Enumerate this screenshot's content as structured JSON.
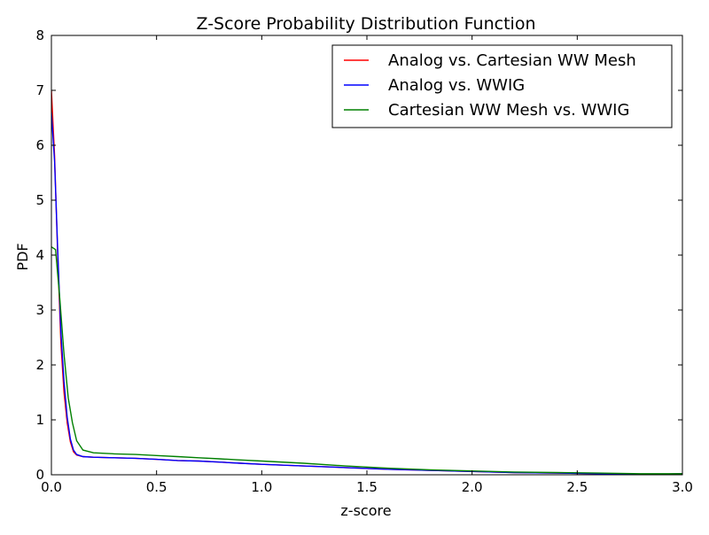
{
  "chart_data": {
    "type": "line",
    "title": "Z-Score Probability Distribution Function",
    "xlabel": "z-score",
    "ylabel": "PDF",
    "xlim": [
      0.0,
      3.0
    ],
    "ylim": [
      0,
      8
    ],
    "x_ticks": [
      0.0,
      0.5,
      1.0,
      1.5,
      2.0,
      2.5,
      3.0
    ],
    "x_tick_labels": [
      "0.0",
      "0.5",
      "1.0",
      "1.5",
      "2.0",
      "2.5",
      "3.0"
    ],
    "y_ticks": [
      0,
      1,
      2,
      3,
      4,
      5,
      6,
      7,
      8
    ],
    "y_tick_labels": [
      "0",
      "1",
      "2",
      "3",
      "4",
      "5",
      "6",
      "7",
      "8"
    ],
    "grid": false,
    "legend_position": "top-right",
    "series": [
      {
        "name": "Analog vs. Cartesian WW Mesh",
        "color": "#ff0000",
        "x": [
          0.0,
          0.015,
          0.03,
          0.045,
          0.06,
          0.075,
          0.09,
          0.105,
          0.12,
          0.15,
          0.2,
          0.3,
          0.4,
          0.5,
          0.6,
          0.7,
          0.8,
          0.9,
          1.0,
          1.2,
          1.4,
          1.6,
          1.8,
          2.0,
          2.2,
          2.4,
          2.6,
          2.8,
          2.9,
          3.0
        ],
        "y": [
          7.0,
          5.8,
          4.0,
          2.4,
          1.5,
          0.95,
          0.6,
          0.42,
          0.36,
          0.33,
          0.32,
          0.31,
          0.3,
          0.28,
          0.26,
          0.25,
          0.23,
          0.21,
          0.19,
          0.16,
          0.13,
          0.1,
          0.08,
          0.06,
          0.04,
          0.03,
          0.02,
          0.01,
          0.01,
          0.02
        ]
      },
      {
        "name": "Analog vs. WWIG",
        "color": "#0000ff",
        "x": [
          0.0,
          0.015,
          0.03,
          0.045,
          0.06,
          0.075,
          0.09,
          0.105,
          0.12,
          0.15,
          0.2,
          0.3,
          0.4,
          0.5,
          0.6,
          0.7,
          0.8,
          0.9,
          1.0,
          1.2,
          1.4,
          1.6,
          1.8,
          2.0,
          2.2,
          2.4,
          2.6,
          2.8,
          2.9,
          3.0
        ],
        "y": [
          6.6,
          5.7,
          4.1,
          2.6,
          1.7,
          1.05,
          0.65,
          0.45,
          0.37,
          0.33,
          0.32,
          0.31,
          0.3,
          0.28,
          0.26,
          0.25,
          0.23,
          0.21,
          0.19,
          0.16,
          0.13,
          0.1,
          0.08,
          0.06,
          0.04,
          0.03,
          0.02,
          0.01,
          0.01,
          0.02
        ]
      },
      {
        "name": "Cartesian WW Mesh vs. WWIG",
        "color": "#008000",
        "x": [
          0.0,
          0.02,
          0.04,
          0.06,
          0.08,
          0.1,
          0.12,
          0.15,
          0.2,
          0.3,
          0.4,
          0.5,
          0.6,
          0.7,
          0.8,
          0.9,
          1.0,
          1.2,
          1.4,
          1.6,
          1.8,
          2.0,
          2.2,
          2.4,
          2.6,
          2.8,
          2.9,
          3.0
        ],
        "y": [
          4.15,
          4.1,
          3.2,
          2.2,
          1.4,
          0.95,
          0.62,
          0.45,
          0.4,
          0.38,
          0.37,
          0.35,
          0.33,
          0.31,
          0.29,
          0.27,
          0.25,
          0.21,
          0.16,
          0.12,
          0.09,
          0.07,
          0.05,
          0.04,
          0.03,
          0.02,
          0.02,
          0.02
        ]
      }
    ]
  }
}
